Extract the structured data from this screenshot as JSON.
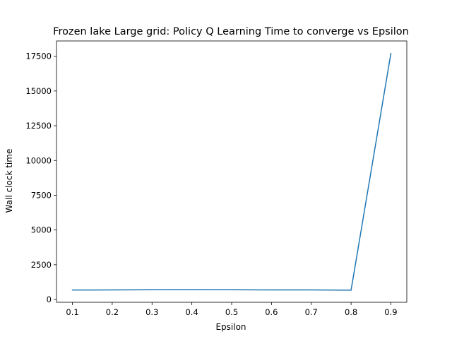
{
  "chart_data": {
    "type": "line",
    "title": "Frozen lake Large grid: Policy Q Learning Time to converge vs Epsilon",
    "xlabel": "Epsilon",
    "ylabel": "Wall clock time",
    "xlim": [
      0.06,
      0.94
    ],
    "ylim": [
      -200,
      18600
    ],
    "grid": false,
    "x_ticks": [
      0.1,
      0.2,
      0.3,
      0.4,
      0.5,
      0.6,
      0.7,
      0.8,
      0.9
    ],
    "x_tick_labels": [
      "0.1",
      "0.2",
      "0.3",
      "0.4",
      "0.5",
      "0.6",
      "0.7",
      "0.8",
      "0.9"
    ],
    "y_ticks": [
      0,
      2500,
      5000,
      7500,
      10000,
      12500,
      15000,
      17500
    ],
    "y_tick_labels": [
      "0",
      "2500",
      "5000",
      "7500",
      "10000",
      "12500",
      "15000",
      "17500"
    ],
    "series": [
      {
        "color": "#1f77b4",
        "x": [
          0.1,
          0.2,
          0.3,
          0.4,
          0.5,
          0.6,
          0.7,
          0.8,
          0.9
        ],
        "values": [
          680,
          690,
          700,
          710,
          700,
          690,
          690,
          670,
          17700
        ]
      }
    ]
  }
}
